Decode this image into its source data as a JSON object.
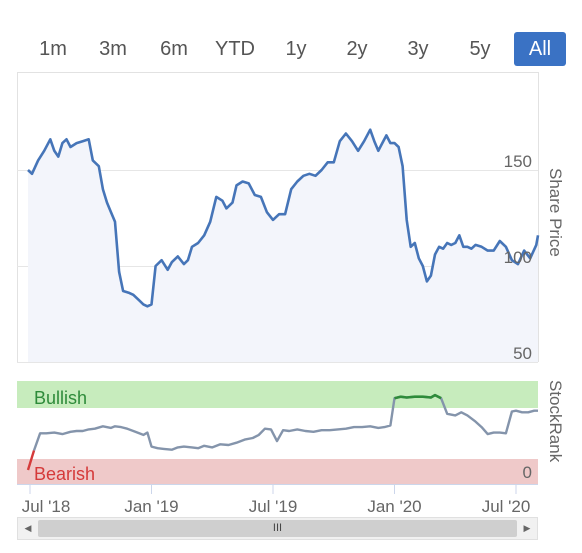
{
  "range_buttons": [
    {
      "label": "1m",
      "active": false
    },
    {
      "label": "3m",
      "active": false
    },
    {
      "label": "6m",
      "active": false
    },
    {
      "label": "YTD",
      "active": false
    },
    {
      "label": "1y",
      "active": false
    },
    {
      "label": "2y",
      "active": false
    },
    {
      "label": "3y",
      "active": false
    },
    {
      "label": "5y",
      "active": false
    },
    {
      "label": "All",
      "active": true
    }
  ],
  "scrollbar": {
    "grip": "III"
  },
  "colors": {
    "price_line": "#4675b8",
    "price_fill": "#f3f5fb",
    "rank_line": "#8494ab",
    "rank_high_line": "#2e8b3a",
    "bullish_band": "#c7ecbd",
    "bearish_band": "#efc9c9",
    "bullish_text": "#2e8b3a",
    "bearish_text": "#d53a3a",
    "active_button": "#3a72c4"
  },
  "chart_data": [
    {
      "type": "line",
      "ylabel": "Share Price",
      "y_ticks": [
        "150",
        "100",
        "50"
      ],
      "ylim": [
        50,
        190
      ],
      "x_ticks": [
        "Jul '18",
        "Jan '19",
        "Jul '19",
        "Jan '20",
        "Jul '20"
      ],
      "x_tick_positions": [
        0,
        6,
        12,
        18,
        24
      ],
      "series": [
        {
          "x": [
            -0.1,
            0.1,
            0.4,
            0.7,
            1.0,
            1.2,
            1.4,
            1.6,
            1.8,
            2.0,
            2.3,
            2.6,
            2.9,
            3.1,
            3.4,
            3.6,
            3.8,
            4.0,
            4.2,
            4.4,
            4.6,
            4.9,
            5.1,
            5.4,
            5.6,
            5.8,
            6.0,
            6.2,
            6.5,
            6.8,
            7.0,
            7.3,
            7.6,
            7.8,
            8.0,
            8.3,
            8.6,
            8.9,
            9.2,
            9.5,
            9.7,
            10.0,
            10.2,
            10.5,
            10.8,
            11.1,
            11.4,
            11.7,
            12.0,
            12.3,
            12.6,
            12.9,
            13.2,
            13.5,
            13.8,
            14.1,
            14.4,
            14.7,
            15.0,
            15.3,
            15.6,
            15.9,
            16.2,
            16.5,
            16.8,
            17.0,
            17.2,
            17.4,
            17.6,
            17.8,
            18.0,
            18.2,
            18.4,
            18.6,
            18.8,
            19.0,
            19.2,
            19.4,
            19.6,
            19.8,
            20.0,
            20.2,
            20.4,
            20.6,
            20.8,
            21.0,
            21.2,
            21.4,
            21.6,
            21.8,
            22.0,
            22.3,
            22.6,
            22.9,
            23.2,
            23.5,
            23.8,
            24.1,
            24.4,
            24.7,
            25.0,
            25.3
          ],
          "y": [
            150,
            148,
            155,
            160,
            166,
            160,
            157,
            164,
            166,
            162,
            164,
            165,
            166,
            155,
            152,
            140,
            133,
            128,
            123,
            97,
            87,
            86,
            85,
            82,
            80,
            79,
            80,
            100,
            103,
            98,
            102,
            105,
            101,
            103,
            110,
            112,
            116,
            123,
            136,
            134,
            130,
            133,
            142,
            144,
            143,
            137,
            136,
            128,
            124,
            127,
            127,
            140,
            144,
            147,
            148,
            147,
            150,
            154,
            154,
            165,
            169,
            165,
            160,
            165,
            171,
            165,
            160,
            164,
            168,
            164,
            164,
            162,
            152,
            124,
            110,
            112,
            104,
            100,
            92,
            95,
            106,
            110,
            109,
            112,
            111,
            112,
            116,
            110,
            110,
            109,
            111,
            110,
            108,
            108,
            113,
            110,
            103,
            101,
            108,
            104,
            111,
            116
          ]
        }
      ]
    },
    {
      "type": "line",
      "ylabel": "StockRank",
      "y_ticks": [
        "0"
      ],
      "ylim": [
        0,
        100
      ],
      "bands": [
        {
          "name": "Bullish",
          "from": 80,
          "to": 100
        },
        {
          "name": "Bearish",
          "from": 0,
          "to": 20
        }
      ],
      "series": [
        {
          "x": [
            -0.1,
            0.2,
            0.5,
            0.8,
            1.2,
            1.6,
            2.0,
            2.3,
            2.6,
            2.9,
            3.2,
            3.6,
            4.0,
            4.2,
            4.5,
            4.8,
            5.2,
            5.6,
            5.8,
            6.0,
            6.3,
            6.6,
            7.0,
            7.3,
            7.6,
            8.0,
            8.3,
            8.6,
            9.0,
            9.4,
            9.8,
            10.2,
            10.6,
            11.0,
            11.3,
            11.6,
            11.9,
            12.2,
            12.5,
            12.8,
            13.2,
            13.6,
            14.0,
            14.4,
            14.8,
            15.2,
            15.6,
            16.0,
            16.4,
            16.8,
            17.2,
            17.5,
            17.8,
            18.0,
            18.3,
            18.6,
            19.0,
            19.4,
            19.8,
            20.0,
            20.3,
            20.6,
            21.0,
            21.3,
            21.6,
            22.0,
            22.3,
            22.6,
            22.9,
            23.2,
            23.5,
            23.8,
            24.0,
            24.3,
            24.6,
            24.9,
            25.2
          ],
          "y": [
            0,
            25,
            47,
            47,
            48,
            46,
            49,
            50,
            50,
            52,
            53,
            56,
            54,
            56,
            55,
            53,
            49,
            45,
            48,
            30,
            28,
            27,
            26,
            29,
            30,
            29,
            28,
            31,
            29,
            33,
            32,
            35,
            39,
            41,
            45,
            53,
            52,
            37,
            51,
            50,
            52,
            50,
            49,
            51,
            51,
            52,
            53,
            55,
            55,
            56,
            54,
            55,
            57,
            92,
            94,
            93,
            94,
            94,
            93,
            96,
            92,
            72,
            70,
            74,
            70,
            62,
            55,
            46,
            48,
            48,
            47,
            75,
            76,
            74,
            74,
            76,
            76
          ]
        }
      ]
    }
  ]
}
